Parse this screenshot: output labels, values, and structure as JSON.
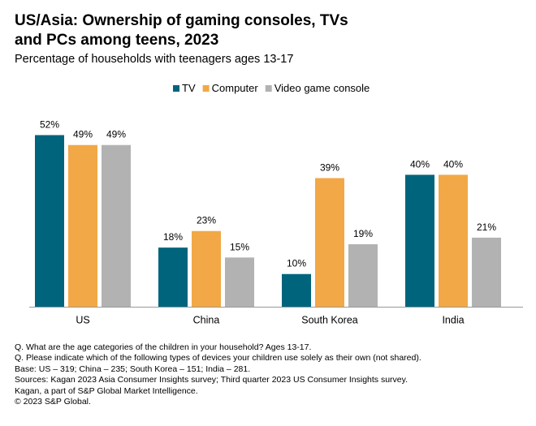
{
  "title_line1": "US/Asia: Ownership of gaming consoles, TVs",
  "title_line2": "and PCs among teens, 2023",
  "subtitle": "Percentage of households with teenagers ages 13-17",
  "colors": {
    "TV": "#00647d",
    "Computer": "#f2a846",
    "Video game console": "#b2b2b2",
    "axis": "#999999"
  },
  "chart_data": {
    "type": "bar",
    "title": "US/Asia: Ownership of gaming consoles, TVs and PCs among teens, 2023",
    "subtitle": "Percentage of households with teenagers ages 13-17",
    "categories": [
      "US",
      "China",
      "South Korea",
      "India"
    ],
    "series": [
      {
        "name": "TV",
        "values": [
          52,
          18,
          10,
          40
        ],
        "labels": [
          "52%",
          "18%",
          "10%",
          "40%"
        ]
      },
      {
        "name": "Computer",
        "values": [
          49,
          23,
          39,
          40
        ],
        "labels": [
          "49%",
          "23%",
          "39%",
          "40%"
        ]
      },
      {
        "name": "Video game console",
        "values": [
          49,
          15,
          19,
          21
        ],
        "labels": [
          "49%",
          "15%",
          "19%",
          "21%"
        ]
      }
    ],
    "ylim": [
      0,
      55
    ],
    "grid": false,
    "legend_position": "top-center",
    "xlabel": "",
    "ylabel": ""
  },
  "notes": [
    "Q. What are the age categories of the children in your household? Ages 13-17.",
    "Q. Please indicate which of the following types of devices your children use solely as their own (not shared).",
    "Base: US – 319; China – 235; South Korea – 151; India – 281.",
    "Sources: Kagan 2023 Asia Consumer Insights survey; Third quarter 2023 US Consumer Insights survey.",
    "Kagan, a part of S&P Global Market Intelligence.",
    "© 2023 S&P Global."
  ]
}
